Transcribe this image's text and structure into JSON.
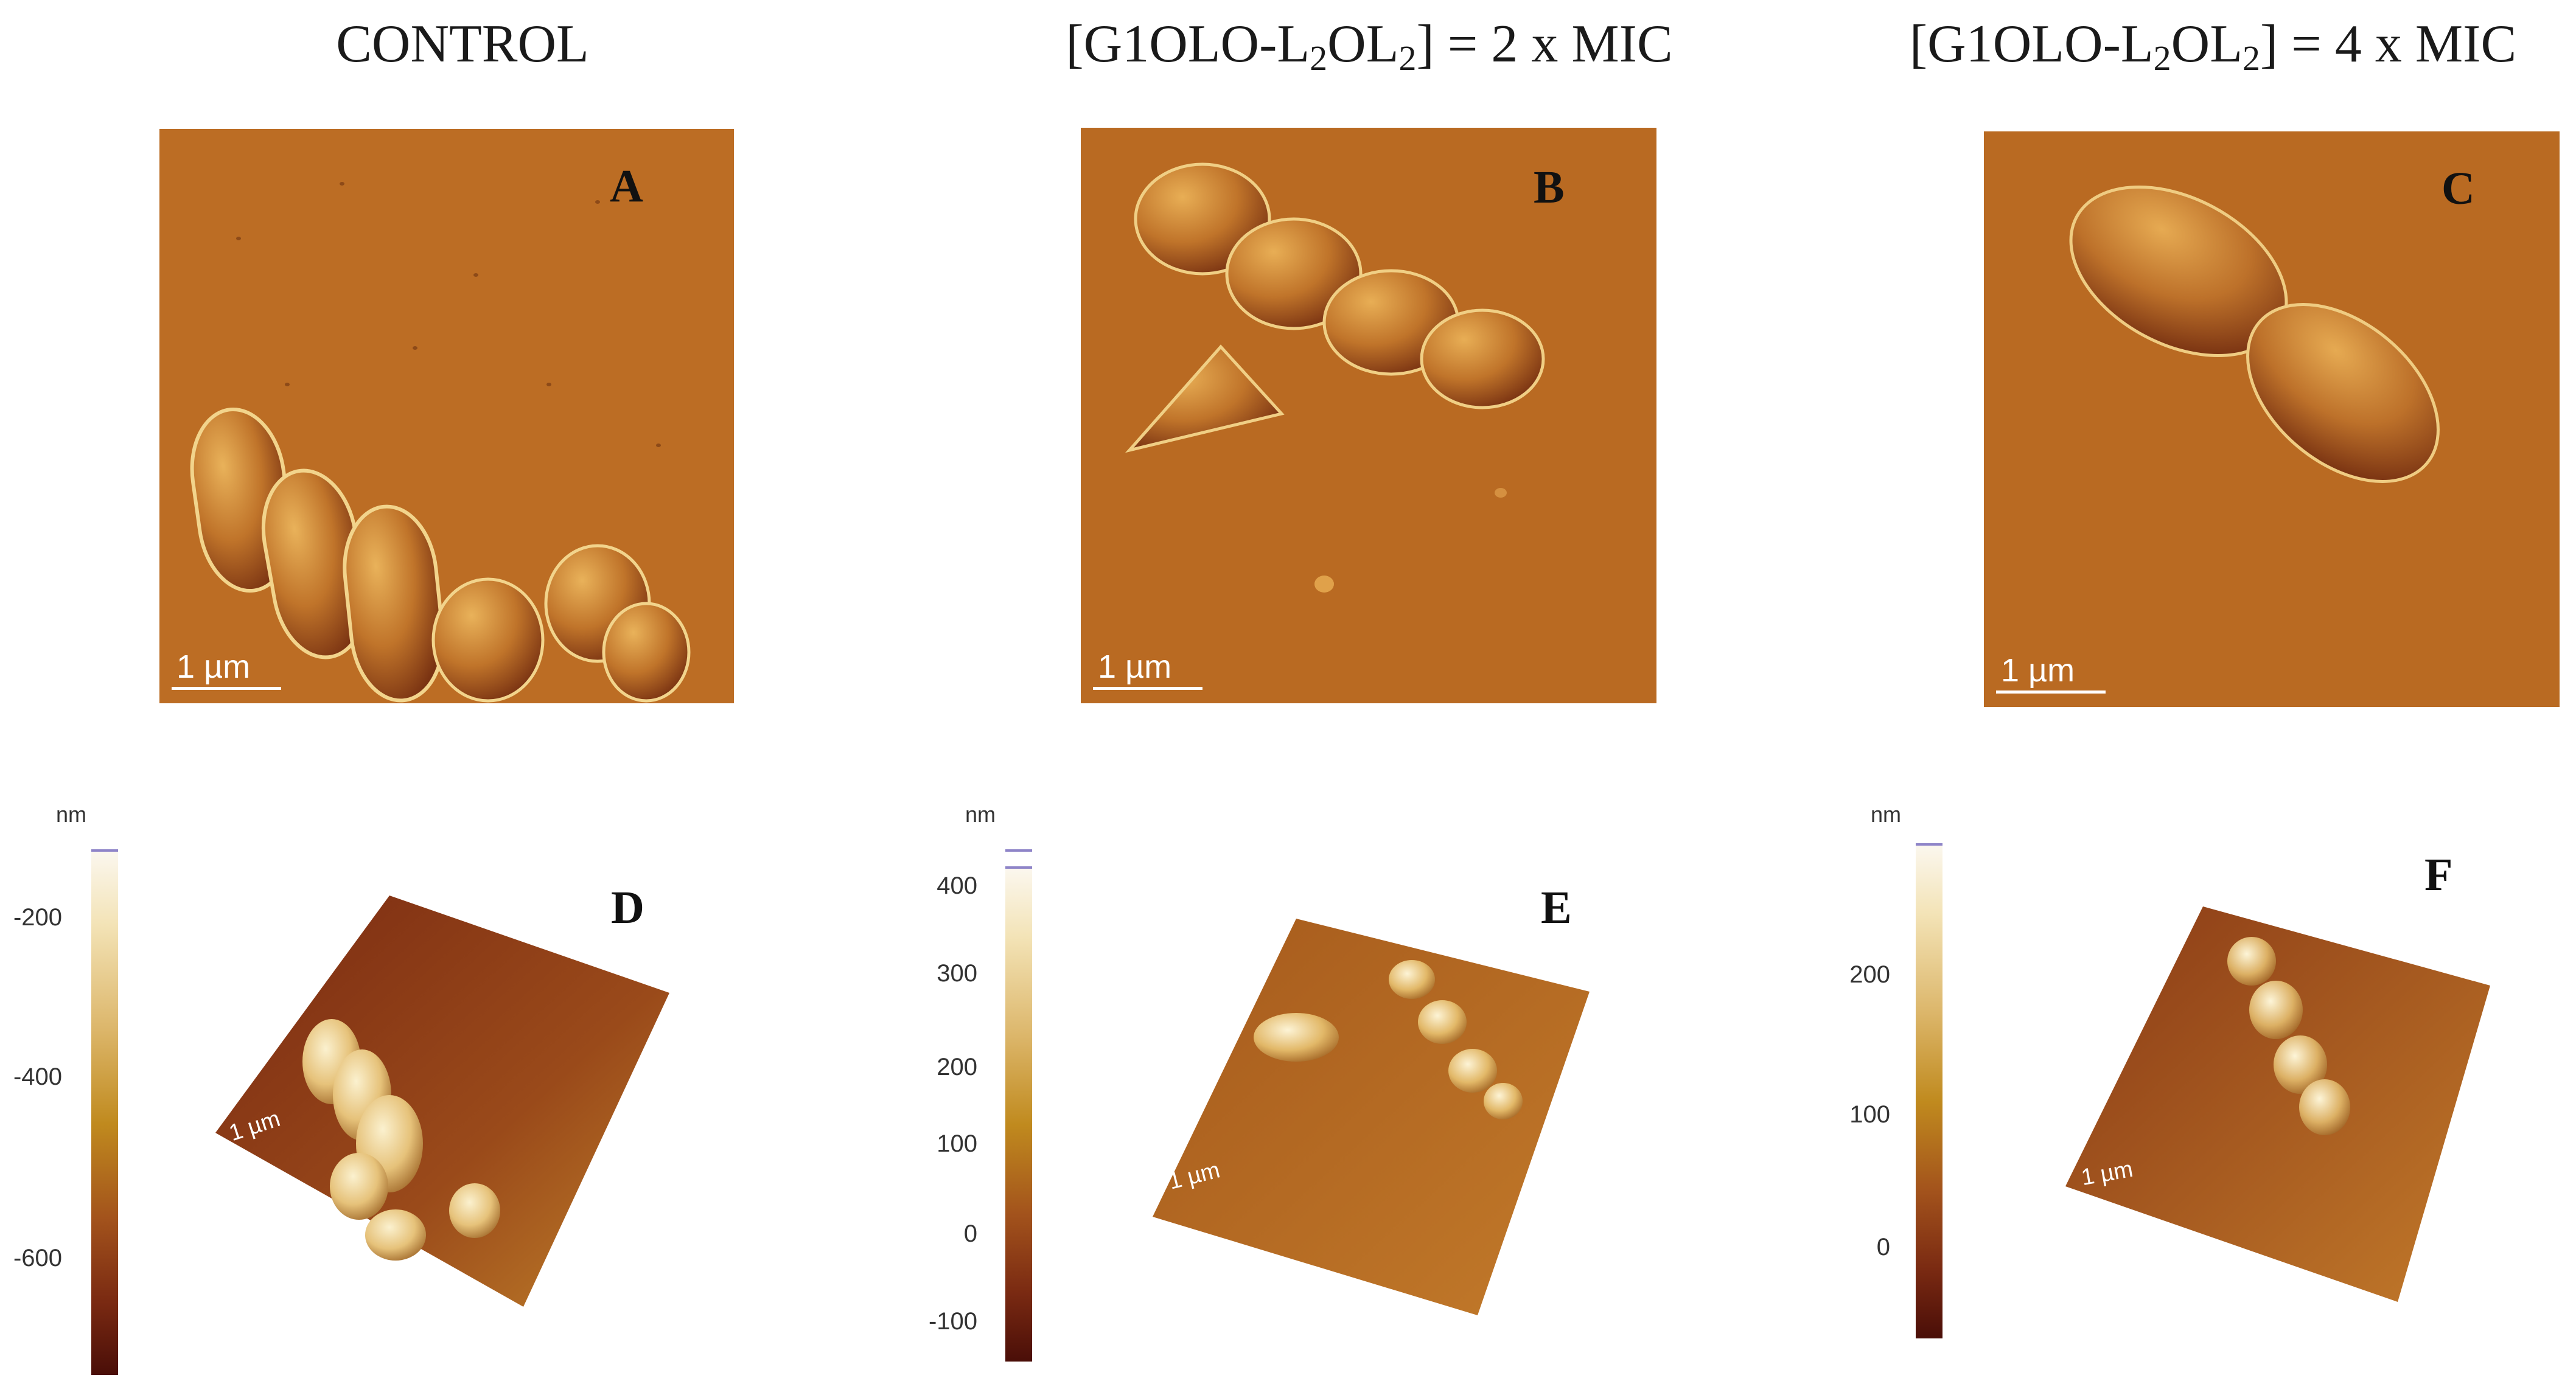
{
  "titles": {
    "control": "CONTROL",
    "mic2_prefix": "[G1OLO-L",
    "mic2_sub1": "2",
    "mic2_mid": "OL",
    "mic2_sub2": "2",
    "mic2_suffix": "] = 2 x MIC",
    "mic4_prefix": "[G1OLO-L",
    "mic4_sub1": "2",
    "mic4_mid": "OL",
    "mic4_sub2": "2",
    "mic4_suffix": "] = 4 x MIC"
  },
  "panels": {
    "A": {
      "label": "A",
      "scale": "1 µm"
    },
    "B": {
      "label": "B",
      "scale": "1 µm"
    },
    "C": {
      "label": "C",
      "scale": "1 µm"
    },
    "D": {
      "label": "D",
      "scale": "1 µm"
    },
    "E": {
      "label": "E",
      "scale": "1 µm"
    },
    "F": {
      "label": "F",
      "scale": "1 µm"
    }
  },
  "colorbars": {
    "D": {
      "unit": "nm",
      "ticks": [
        "-200",
        "-400",
        "-600"
      ]
    },
    "E": {
      "unit": "nm",
      "ticks": [
        "400",
        "300",
        "200",
        "100",
        "0",
        "-100"
      ]
    },
    "F": {
      "unit": "nm",
      "ticks": [
        "200",
        "100",
        "0"
      ]
    }
  },
  "colors": {
    "afm_surface": "#b8651f",
    "afm_dark": "#6b2410",
    "afm_highlight": "#f6e6b5",
    "scale_text": "#ffffff"
  }
}
